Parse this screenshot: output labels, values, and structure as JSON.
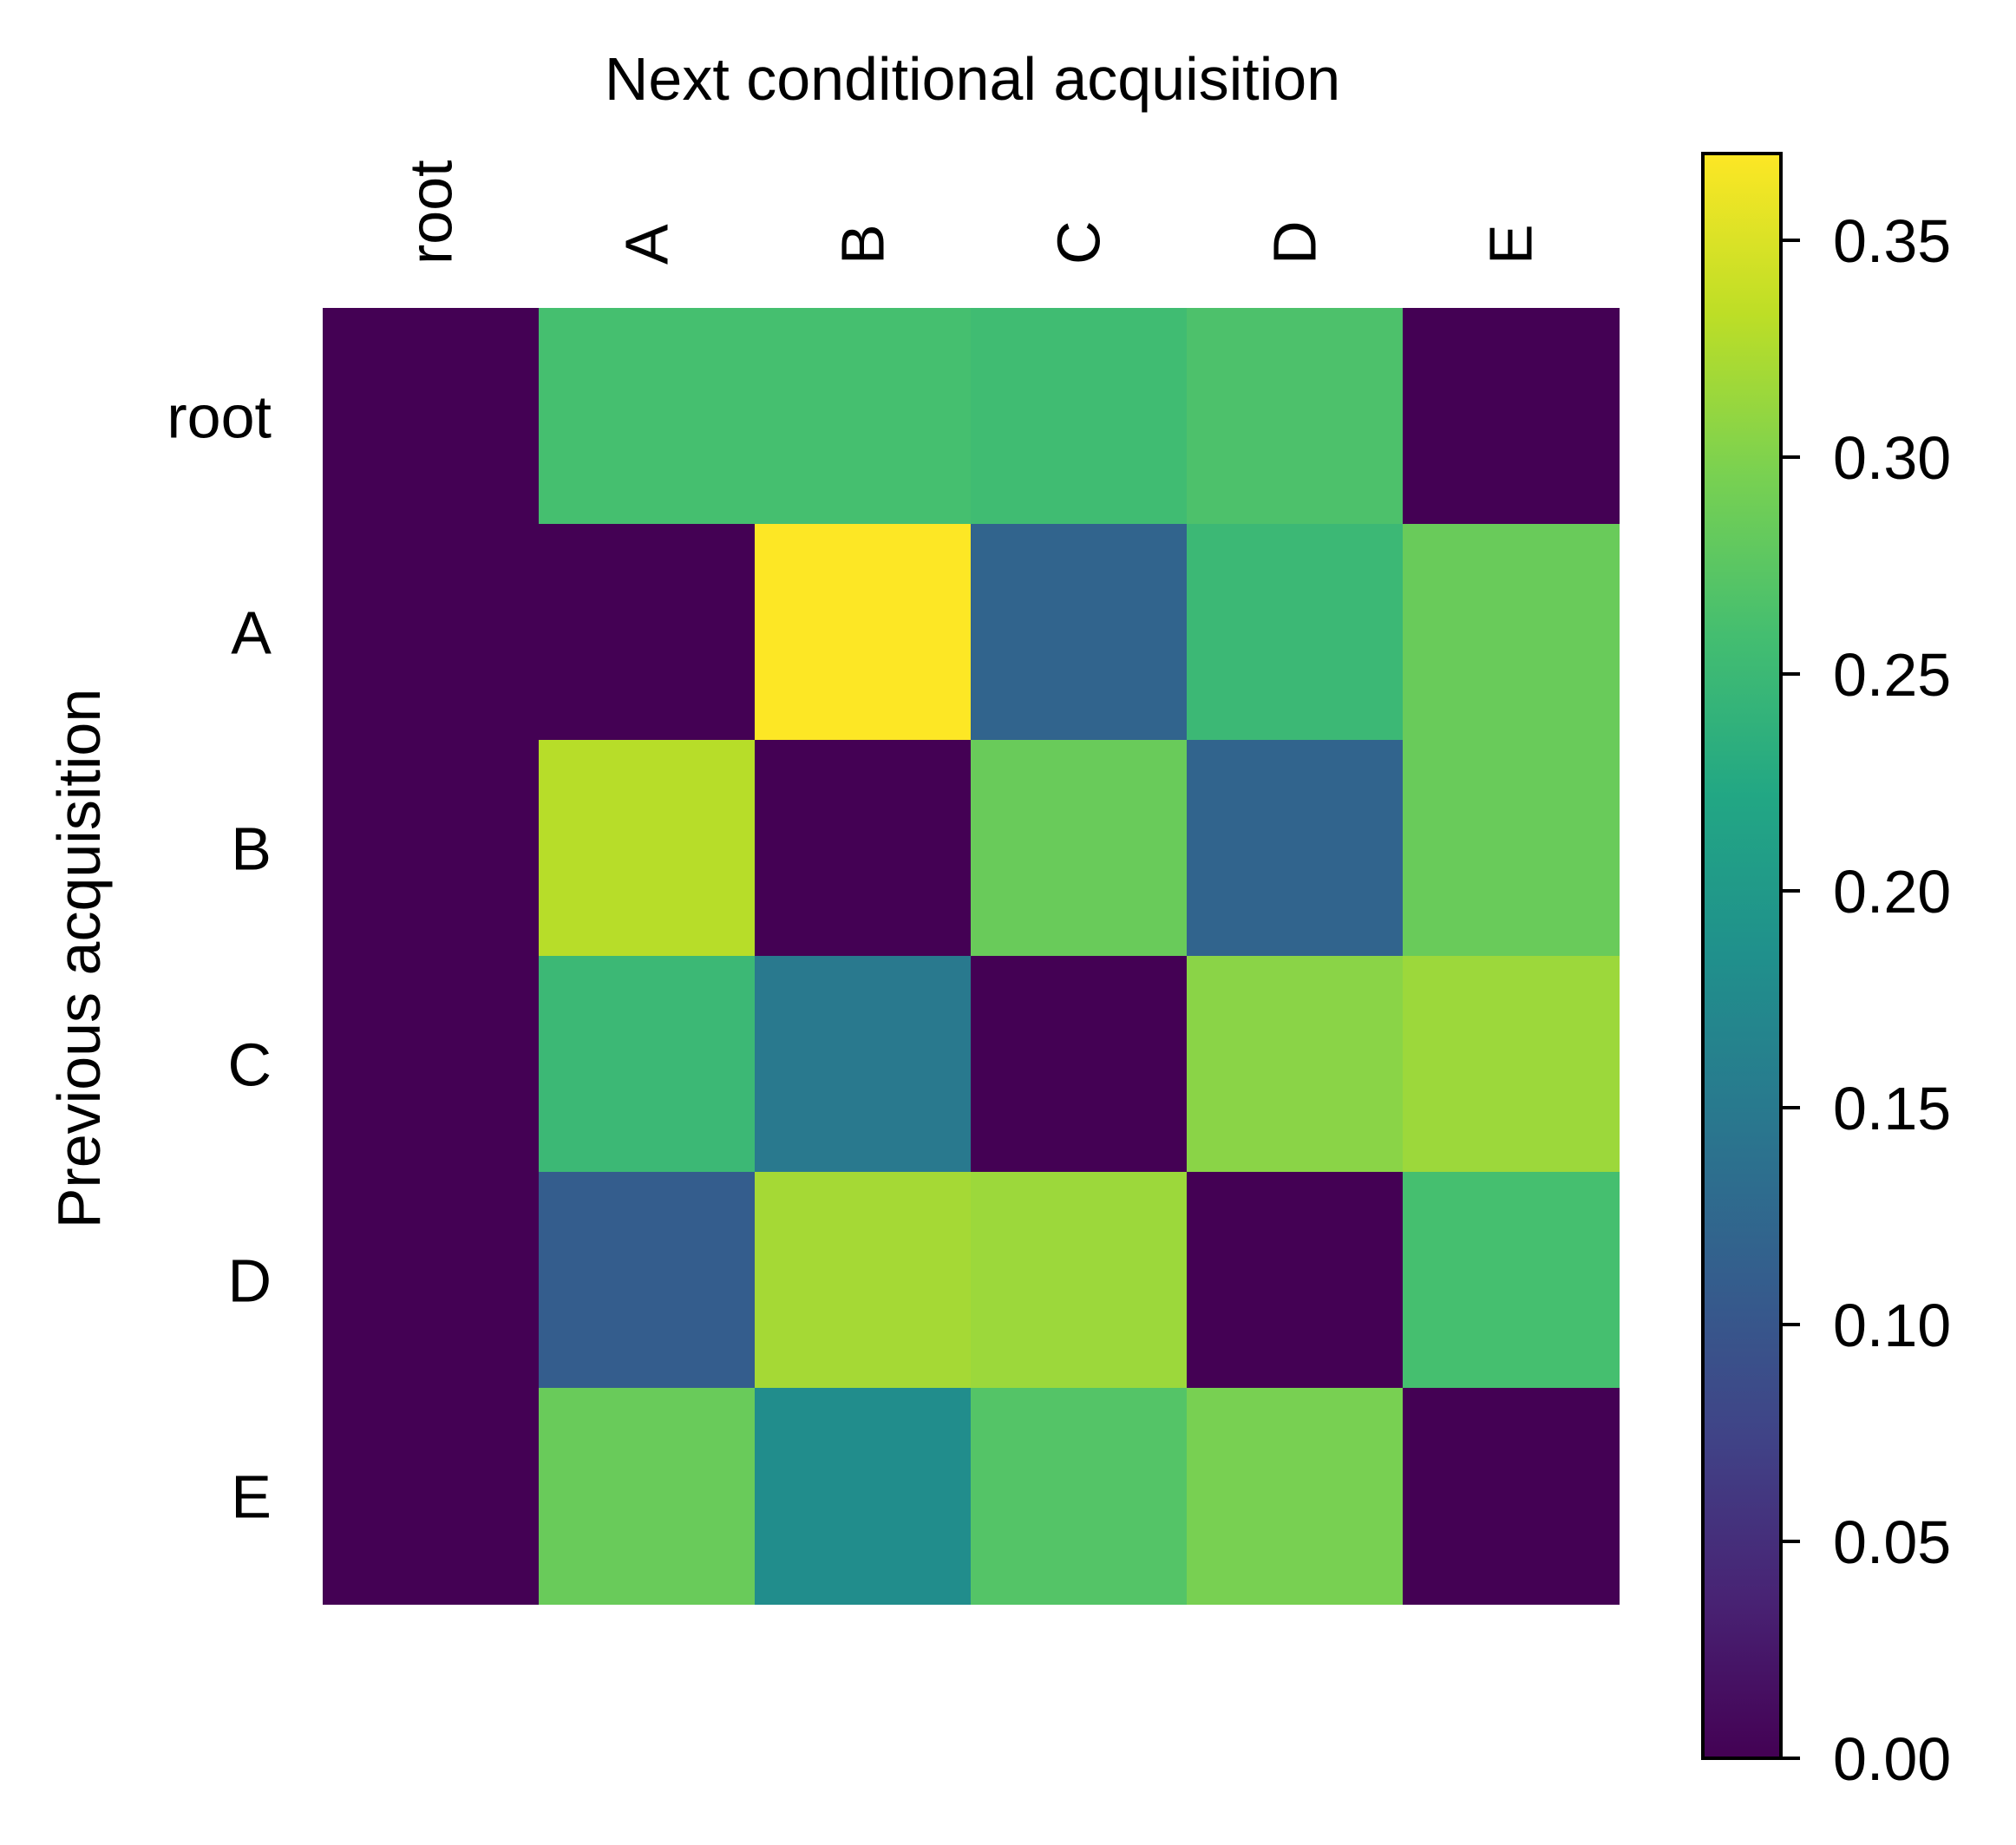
{
  "chart_data": {
    "type": "heatmap",
    "xlabel": "Next conditional acquisition",
    "ylabel": "Previous acquisition",
    "x_categories": [
      "root",
      "A",
      "B",
      "C",
      "D",
      "E"
    ],
    "y_categories": [
      "root",
      "A",
      "B",
      "C",
      "D",
      "E"
    ],
    "values": [
      [
        0.0,
        0.26,
        0.26,
        0.255,
        0.265,
        0.0
      ],
      [
        0.0,
        0.0,
        0.37,
        0.12,
        0.25,
        0.285
      ],
      [
        0.0,
        0.33,
        0.0,
        0.285,
        0.12,
        0.285
      ],
      [
        0.0,
        0.25,
        0.15,
        0.0,
        0.305,
        0.315
      ],
      [
        0.0,
        0.11,
        0.32,
        0.315,
        0.0,
        0.26
      ],
      [
        0.0,
        0.285,
        0.18,
        0.27,
        0.295,
        0.0
      ]
    ],
    "colormap": "viridis",
    "colorbar": {
      "range": [
        0.0,
        0.37
      ],
      "ticks": [
        "0.00",
        "0.05",
        "0.10",
        "0.15",
        "0.20",
        "0.25",
        "0.30",
        "0.35"
      ]
    },
    "x_tick_position": "top",
    "x_tick_rotation": "vertical",
    "grid": false
  }
}
